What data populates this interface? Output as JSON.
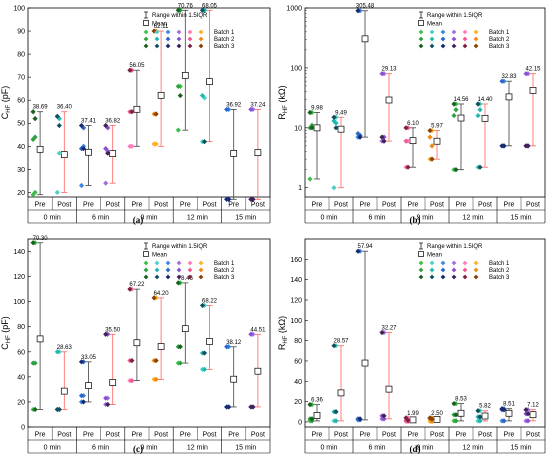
{
  "palette": {
    "batch1": [
      "#3cc04a",
      "#4ad0c8",
      "#3a88e0",
      "#a070e0",
      "#ff7eb8",
      "#ffb020"
    ],
    "batch2": [
      "#2ea040",
      "#20b8b0",
      "#2a66c8",
      "#8a50d0",
      "#f05898",
      "#f08a10"
    ],
    "batch3": [
      "#1a6020",
      "#0e5060",
      "#1a2a70",
      "#40205a",
      "#802040",
      "#8a4000"
    ],
    "pre_bar": "#404040",
    "post_bar": "#ff6060"
  },
  "shared": {
    "pre_label": "Pre",
    "post_label": "Post",
    "groups": [
      "0 min",
      "6 min",
      "9 min",
      "12 min",
      "15 min"
    ],
    "legend": [
      "Range within 1.5IQR",
      "Mean",
      "Batch 1",
      "Batch 2",
      "Batch 3"
    ]
  },
  "chart_data": [
    {
      "id": "a",
      "type": "scatter",
      "caption": "(a)",
      "ylabel_main": "C",
      "ylabel_sub": "HF",
      "ylabel_unit": " (pF)",
      "ylim": [
        18,
        100
      ],
      "yticks": [
        "20",
        "30",
        "40",
        "50",
        "60",
        "70",
        "80",
        "90",
        "100"
      ],
      "log": false,
      "series": [
        {
          "group": "0 min",
          "phase": "Pre",
          "top_label": "38.69",
          "min": 19,
          "max": 55,
          "mean": 38.69,
          "points": [
            [
              19,
              20
            ],
            [
              43,
              44
            ],
            [
              55,
              52
            ]
          ]
        },
        {
          "group": "0 min",
          "phase": "Post",
          "top_label": "36.40",
          "min": 20,
          "max": 55,
          "mean": 36.4,
          "points": [
            [
              20,
              37
            ],
            [
              53,
              52
            ],
            [
              53,
              49
            ]
          ]
        },
        {
          "group": "6 min",
          "phase": "Pre",
          "top_label": "37.41",
          "min": 23,
          "max": 49,
          "mean": 37.41,
          "points": [
            [
              23,
              40
            ],
            [
              39,
              48
            ],
            [
              49,
              39
            ]
          ]
        },
        {
          "group": "6 min",
          "phase": "Post",
          "top_label": "36.82",
          "min": 24,
          "max": 49,
          "mean": 36.82,
          "points": [
            [
              24,
              38
            ],
            [
              39,
              48
            ],
            [
              49,
              37
            ]
          ]
        },
        {
          "group": "9 min",
          "phase": "Pre",
          "top_label": "56.05",
          "min": 40,
          "max": 73,
          "mean": 56.05,
          "points": [
            [
              40,
              40
            ],
            [
              55,
              73
            ],
            [
              73,
              55
            ]
          ]
        },
        {
          "group": "9 min",
          "phase": "Post",
          "top_label": "62.11",
          "min": 40,
          "max": 90,
          "mean": 62.11,
          "points": [
            [
              41,
              41
            ],
            [
              54,
              90
            ],
            [
              90,
              54
            ]
          ]
        },
        {
          "group": "12 min",
          "phase": "Pre",
          "top_label": "70.76",
          "min": 47,
          "max": 99,
          "mean": 70.76,
          "points": [
            [
              47,
              66
            ],
            [
              66,
              99
            ],
            [
              99,
              62
            ]
          ]
        },
        {
          "group": "12 min",
          "phase": "Post",
          "top_label": "68.05",
          "min": 42,
          "max": 99,
          "mean": 68.05,
          "points": [
            [
              42,
              61
            ],
            [
              62,
              99
            ],
            [
              99,
              42
            ]
          ]
        },
        {
          "group": "15 min",
          "phase": "Pre",
          "top_label": "36.92",
          "min": 17,
          "max": 56,
          "mean": 36.92,
          "points": [
            [
              17,
              56
            ],
            [
              56,
              17
            ],
            [
              17,
              17
            ]
          ]
        },
        {
          "group": "15 min",
          "phase": "Post",
          "top_label": "37.24",
          "min": 17,
          "max": 56,
          "mean": 37.24,
          "points": [
            [
              17,
              56
            ],
            [
              56,
              17
            ],
            [
              17,
              17
            ]
          ]
        }
      ]
    },
    {
      "id": "b",
      "type": "scatter",
      "caption": "(b)",
      "ylabel_main": "R",
      "ylabel_sub": "HF",
      "ylabel_unit": " (kΩ)",
      "ylim": [
        0.7,
        1000
      ],
      "yticks": [
        "1",
        "10",
        "100",
        "1000"
      ],
      "log": true,
      "series": [
        {
          "group": "0 min",
          "phase": "Pre",
          "top_label": "9.98",
          "min": 1.4,
          "max": 18,
          "mean": 9.98,
          "points": [
            [
              1.4,
              18
            ],
            [
              10,
              11
            ],
            [
              18,
              10
            ]
          ]
        },
        {
          "group": "0 min",
          "phase": "Post",
          "top_label": "9.49",
          "min": 1,
          "max": 15,
          "mean": 9.49,
          "points": [
            [
              1,
              15
            ],
            [
              13,
              12
            ],
            [
              15,
              10
            ]
          ]
        },
        {
          "group": "6 min",
          "phase": "Pre",
          "top_label": "305.48",
          "min": 7,
          "max": 900,
          "mean": 305.48,
          "points": [
            [
              7,
              900
            ],
            [
              8,
              7.5
            ],
            [
              900,
              7
            ]
          ]
        },
        {
          "group": "6 min",
          "phase": "Post",
          "top_label": "29.13",
          "min": 6,
          "max": 80,
          "mean": 29.13,
          "points": [
            [
              6,
              80
            ],
            [
              80,
              7
            ],
            [
              7,
              6
            ]
          ]
        },
        {
          "group": "9 min",
          "phase": "Pre",
          "top_label": "6.10",
          "min": 2.2,
          "max": 10,
          "mean": 6.1,
          "points": [
            [
              2.2,
              6
            ],
            [
              6,
              10
            ],
            [
              10,
              2.2
            ]
          ]
        },
        {
          "group": "9 min",
          "phase": "Post",
          "top_label": "5.97",
          "min": 3,
          "max": 9,
          "mean": 5.97,
          "points": [
            [
              3,
              9
            ],
            [
              7,
              5
            ],
            [
              9,
              3
            ]
          ]
        },
        {
          "group": "12 min",
          "phase": "Pre",
          "top_label": "14.56",
          "min": 2,
          "max": 25,
          "mean": 14.56,
          "points": [
            [
              2,
              25
            ],
            [
              16,
              20
            ],
            [
              25,
              2
            ]
          ]
        },
        {
          "group": "12 min",
          "phase": "Post",
          "top_label": "14.40",
          "min": 2.2,
          "max": 25,
          "mean": 14.4,
          "points": [
            [
              2.2,
              25
            ],
            [
              16,
              20
            ],
            [
              25,
              2.2
            ]
          ]
        },
        {
          "group": "15 min",
          "phase": "Pre",
          "top_label": "32.83",
          "min": 5,
          "max": 60,
          "mean": 32.83,
          "points": [
            [
              5,
              60
            ],
            [
              60,
              5
            ],
            [
              5,
              5
            ]
          ]
        },
        {
          "group": "15 min",
          "phase": "Post",
          "top_label": "42.15",
          "min": 5,
          "max": 80,
          "mean": 42.15,
          "points": [
            [
              5,
              80
            ],
            [
              80,
              5
            ],
            [
              5,
              5
            ]
          ]
        }
      ]
    },
    {
      "id": "c",
      "type": "scatter",
      "caption": "(c)",
      "ylabel_main": "C",
      "ylabel_sub": "HF",
      "ylabel_unit": " (pF)",
      "ylim": [
        0,
        150
      ],
      "yticks": [
        "0",
        "20",
        "40",
        "60",
        "80",
        "100",
        "120",
        "140"
      ],
      "log": false,
      "series": [
        {
          "group": "0 min",
          "phase": "Pre",
          "top_label": "70.30",
          "min": 14,
          "max": 147,
          "mean": 70.3,
          "points": [
            [
              14,
              147
            ],
            [
              51,
              51
            ],
            [
              147,
              14
            ]
          ]
        },
        {
          "group": "0 min",
          "phase": "Post",
          "top_label": "28.63",
          "min": 14,
          "max": 60,
          "mean": 28.63,
          "points": [
            [
              14,
              60
            ],
            [
              60,
              14
            ],
            [
              14,
              14
            ]
          ]
        },
        {
          "group": "6 min",
          "phase": "Pre",
          "top_label": "33.05",
          "min": 20,
          "max": 52,
          "mean": 33.05,
          "points": [
            [
              20,
              25
            ],
            [
              25,
              52
            ],
            [
              52,
              20
            ]
          ]
        },
        {
          "group": "6 min",
          "phase": "Post",
          "top_label": "35.50",
          "min": 18,
          "max": 74,
          "mean": 35.5,
          "points": [
            [
              18,
              23
            ],
            [
              23,
              74
            ],
            [
              74,
              18
            ]
          ]
        },
        {
          "group": "9 min",
          "phase": "Pre",
          "top_label": "67.22",
          "min": 37,
          "max": 110,
          "mean": 67.22,
          "points": [
            [
              37,
              110
            ],
            [
              53,
              37
            ],
            [
              110,
              53
            ]
          ]
        },
        {
          "group": "9 min",
          "phase": "Post",
          "top_label": "64.20",
          "min": 38,
          "max": 103,
          "mean": 64.2,
          "points": [
            [
              38,
              103
            ],
            [
              53,
              38
            ],
            [
              103,
              53
            ]
          ]
        },
        {
          "group": "12 min",
          "phase": "Pre",
          "top_label": "78.46",
          "min": 51,
          "max": 115,
          "mean": 78.46,
          "points": [
            [
              51,
              115
            ],
            [
              64,
              51
            ],
            [
              115,
              64
            ]
          ]
        },
        {
          "group": "12 min",
          "phase": "Post",
          "top_label": "68.22",
          "min": 46,
          "max": 97,
          "mean": 68.22,
          "points": [
            [
              46,
              97
            ],
            [
              59,
              46
            ],
            [
              97,
              59
            ]
          ]
        },
        {
          "group": "15 min",
          "phase": "Pre",
          "top_label": "38.12",
          "min": 16,
          "max": 64,
          "mean": 38.12,
          "points": [
            [
              16,
              64
            ],
            [
              64,
              16
            ],
            [
              16,
              16
            ]
          ]
        },
        {
          "group": "15 min",
          "phase": "Post",
          "top_label": "44.51",
          "min": 16,
          "max": 74,
          "mean": 44.51,
          "points": [
            [
              16,
              74
            ],
            [
              74,
              16
            ],
            [
              16,
              16
            ]
          ]
        }
      ]
    },
    {
      "id": "d",
      "type": "scatter",
      "caption": "(d)",
      "ylabel_main": "R",
      "ylabel_sub": "HF",
      "ylabel_unit": " (kΩ)",
      "ylim": [
        -5,
        180
      ],
      "yticks": [
        "0",
        "20",
        "40",
        "60",
        "80",
        "100",
        "120",
        "140",
        "160"
      ],
      "log": false,
      "series": [
        {
          "group": "0 min",
          "phase": "Pre",
          "top_label": "6.36",
          "min": 1,
          "max": 17,
          "mean": 6.36,
          "points": [
            [
              1,
              17
            ],
            [
              3,
              1
            ],
            [
              17,
              3
            ]
          ]
        },
        {
          "group": "0 min",
          "phase": "Post",
          "top_label": "28.57",
          "min": 1,
          "max": 75,
          "mean": 28.57,
          "points": [
            [
              1,
              75
            ],
            [
              10,
              1
            ],
            [
              75,
              10
            ]
          ]
        },
        {
          "group": "6 min",
          "phase": "Pre",
          "top_label": "57.94",
          "min": 2,
          "max": 168,
          "mean": 57.94,
          "points": [
            [
              2,
              168
            ],
            [
              3,
              2
            ],
            [
              168,
              3
            ]
          ]
        },
        {
          "group": "6 min",
          "phase": "Post",
          "top_label": "32.27",
          "min": 3,
          "max": 88,
          "mean": 32.27,
          "points": [
            [
              3,
              88
            ],
            [
              6,
              3
            ],
            [
              88,
              6
            ]
          ]
        },
        {
          "group": "9 min",
          "phase": "Pre",
          "top_label": "1.99",
          "min": 0.5,
          "max": 4,
          "mean": 1.99,
          "points": [
            [
              0.5,
              4
            ],
            [
              1.5,
              0.5
            ],
            [
              4,
              1.5
            ]
          ]
        },
        {
          "group": "9 min",
          "phase": "Post",
          "top_label": "2.50",
          "min": 0.5,
          "max": 4,
          "mean": 2.5,
          "points": [
            [
              0.5,
              4
            ],
            [
              3,
              0.5
            ],
            [
              4,
              3
            ]
          ]
        },
        {
          "group": "12 min",
          "phase": "Pre",
          "top_label": "8.53",
          "min": 1,
          "max": 18,
          "mean": 8.53,
          "points": [
            [
              1,
              18
            ],
            [
              7,
              1
            ],
            [
              18,
              7
            ]
          ]
        },
        {
          "group": "12 min",
          "phase": "Post",
          "top_label": "5.82",
          "min": 1,
          "max": 11,
          "mean": 5.82,
          "points": [
            [
              1,
              11
            ],
            [
              5,
              1
            ],
            [
              11,
              5
            ]
          ]
        },
        {
          "group": "15 min",
          "phase": "Pre",
          "top_label": "8.51",
          "min": 1,
          "max": 13,
          "mean": 8.51,
          "points": [
            [
              1,
              13
            ],
            [
              12,
              1
            ],
            [
              13,
              12
            ]
          ]
        },
        {
          "group": "15 min",
          "phase": "Post",
          "top_label": "7.12",
          "min": 1,
          "max": 12,
          "mean": 7.12,
          "points": [
            [
              1,
              12
            ],
            [
              8,
              1
            ],
            [
              12,
              8
            ]
          ]
        }
      ]
    }
  ]
}
